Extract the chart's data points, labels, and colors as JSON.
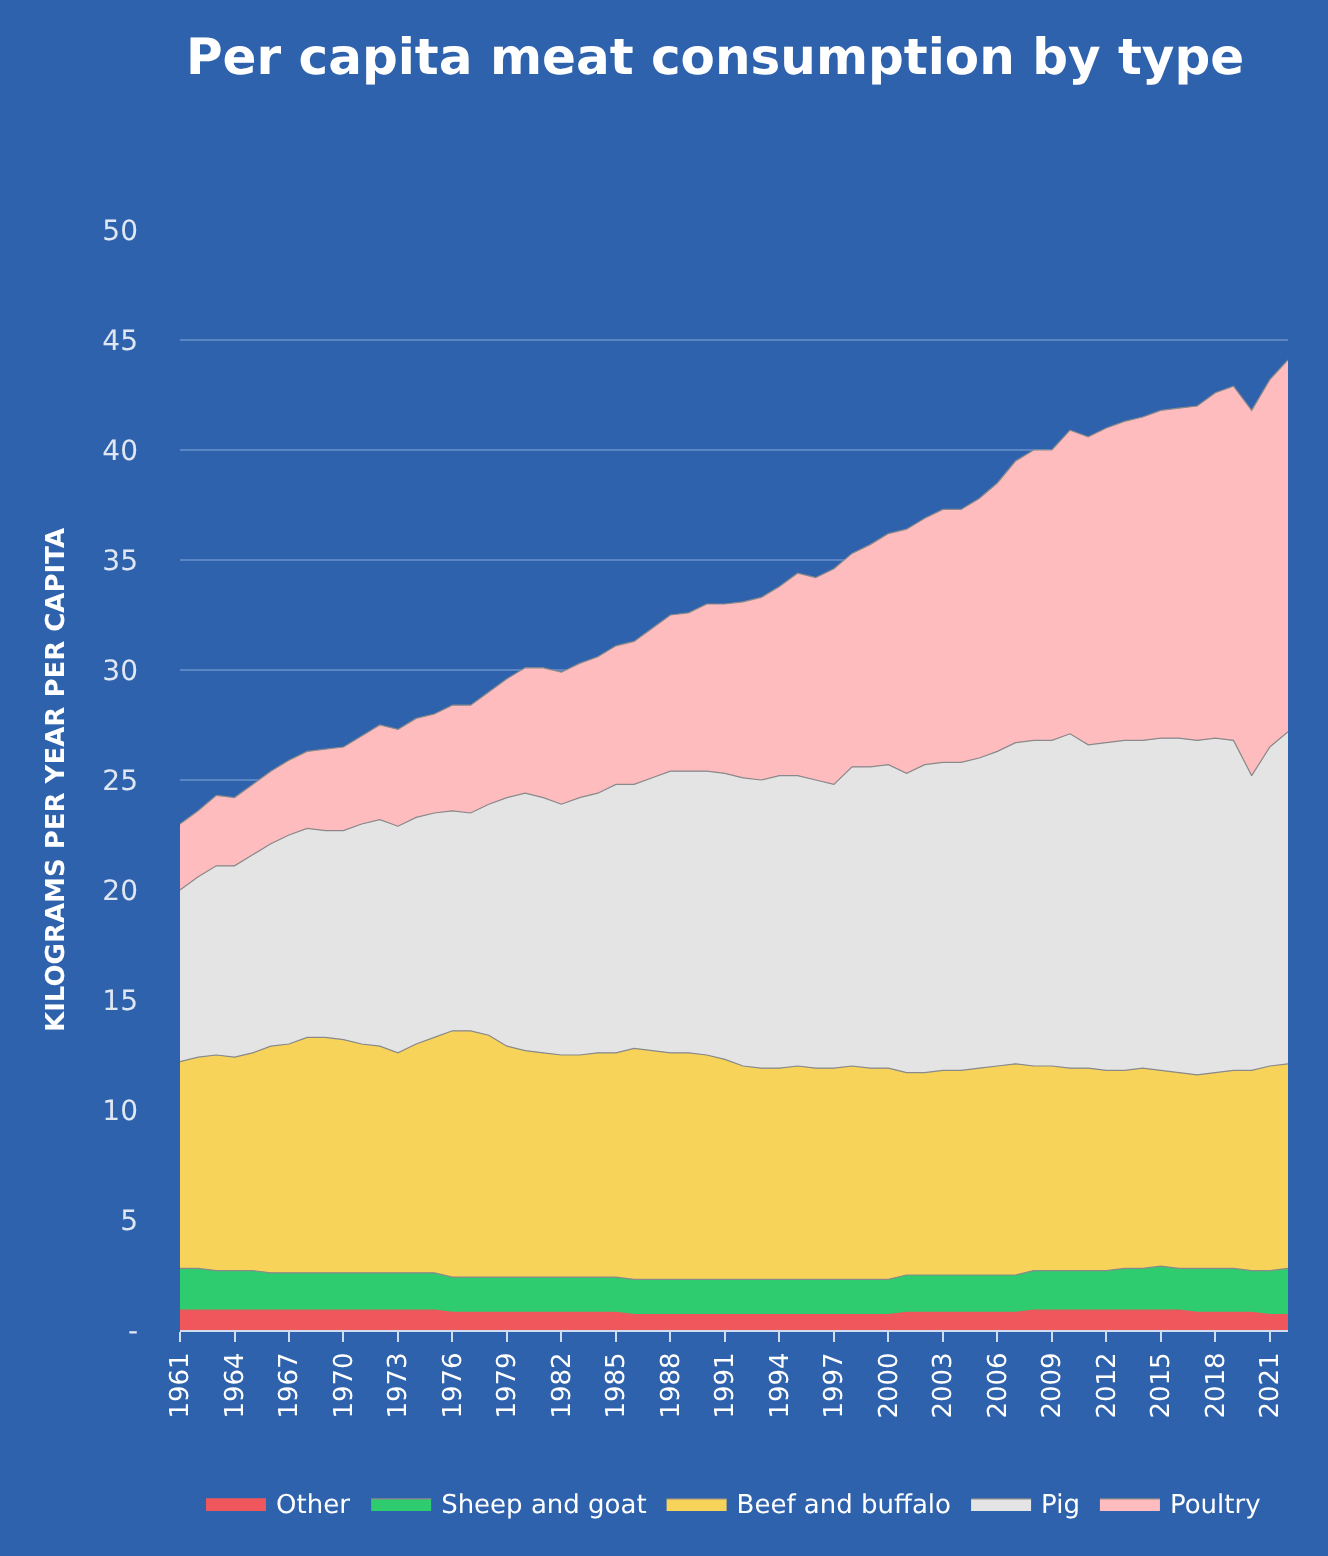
{
  "chart_data": {
    "type": "area",
    "stacked": true,
    "title": "Per capita meat consumption by type",
    "ylabel": "KILOGRAMS PER YEAR PER CAPITA",
    "x": [
      1961,
      1962,
      1963,
      1964,
      1965,
      1966,
      1967,
      1968,
      1969,
      1970,
      1971,
      1972,
      1973,
      1974,
      1975,
      1976,
      1977,
      1978,
      1979,
      1980,
      1981,
      1982,
      1983,
      1984,
      1985,
      1986,
      1987,
      1988,
      1989,
      1990,
      1991,
      1992,
      1993,
      1994,
      1995,
      1996,
      1997,
      1998,
      1999,
      2000,
      2001,
      2002,
      2003,
      2004,
      2005,
      2006,
      2007,
      2008,
      2009,
      2010,
      2011,
      2012,
      2013,
      2014,
      2015,
      2016,
      2017,
      2018,
      2019,
      2020,
      2021,
      2022
    ],
    "xlim": [
      1961,
      2022
    ],
    "xticks": [
      1961,
      1964,
      1967,
      1970,
      1973,
      1976,
      1979,
      1982,
      1985,
      1988,
      1991,
      1994,
      1997,
      2000,
      2003,
      2006,
      2009,
      2012,
      2015,
      2018,
      2021
    ],
    "ylim": [
      0,
      50
    ],
    "yticks": [
      {
        "value": 0,
        "label": "-"
      },
      5,
      10,
      15,
      20,
      25,
      30,
      35,
      40,
      45,
      50
    ],
    "grid": "y",
    "legend": "bottom",
    "series": [
      {
        "name": "Other",
        "color": "#f0575c",
        "values": [
          0.9,
          0.9,
          0.9,
          0.9,
          0.9,
          0.9,
          0.9,
          0.9,
          0.9,
          0.9,
          0.9,
          0.9,
          0.9,
          0.9,
          0.9,
          0.8,
          0.8,
          0.8,
          0.8,
          0.8,
          0.8,
          0.8,
          0.8,
          0.8,
          0.8,
          0.7,
          0.7,
          0.7,
          0.7,
          0.7,
          0.7,
          0.7,
          0.7,
          0.7,
          0.7,
          0.7,
          0.7,
          0.7,
          0.7,
          0.7,
          0.8,
          0.8,
          0.8,
          0.8,
          0.8,
          0.8,
          0.8,
          0.9,
          0.9,
          0.9,
          0.9,
          0.9,
          0.9,
          0.9,
          0.9,
          0.9,
          0.8,
          0.8,
          0.8,
          0.8,
          0.7,
          0.7
        ]
      },
      {
        "name": "Sheep and goat",
        "color": "#2ecc6e",
        "values": [
          1.9,
          1.9,
          1.8,
          1.8,
          1.8,
          1.7,
          1.7,
          1.7,
          1.7,
          1.7,
          1.7,
          1.7,
          1.7,
          1.7,
          1.7,
          1.6,
          1.6,
          1.6,
          1.6,
          1.6,
          1.6,
          1.6,
          1.6,
          1.6,
          1.6,
          1.6,
          1.6,
          1.6,
          1.6,
          1.6,
          1.6,
          1.6,
          1.6,
          1.6,
          1.6,
          1.6,
          1.6,
          1.6,
          1.6,
          1.6,
          1.7,
          1.7,
          1.7,
          1.7,
          1.7,
          1.7,
          1.7,
          1.8,
          1.8,
          1.8,
          1.8,
          1.8,
          1.9,
          1.9,
          2.0,
          1.9,
          2.0,
          2.0,
          2.0,
          1.9,
          2.0,
          2.1
        ]
      },
      {
        "name": "Beef and buffalo",
        "color": "#f7d35a",
        "values": [
          9.4,
          9.6,
          9.8,
          9.7,
          9.9,
          10.3,
          10.4,
          10.7,
          10.7,
          10.6,
          10.4,
          10.3,
          10.0,
          10.4,
          10.7,
          11.2,
          11.2,
          11.0,
          10.5,
          10.3,
          10.2,
          10.1,
          10.1,
          10.2,
          10.2,
          10.5,
          10.4,
          10.3,
          10.3,
          10.2,
          10.0,
          9.7,
          9.6,
          9.6,
          9.7,
          9.6,
          9.6,
          9.7,
          9.6,
          9.6,
          9.2,
          9.2,
          9.3,
          9.3,
          9.4,
          9.5,
          9.6,
          9.3,
          9.3,
          9.2,
          9.2,
          9.1,
          9.0,
          9.1,
          8.9,
          8.9,
          8.8,
          8.9,
          9.0,
          9.1,
          9.3,
          9.3
        ]
      },
      {
        "name": "Pig",
        "color": "#e4e4e4",
        "values": [
          7.8,
          8.2,
          8.6,
          8.7,
          9.0,
          9.2,
          9.5,
          9.5,
          9.4,
          9.5,
          10.0,
          10.3,
          10.3,
          10.3,
          10.2,
          10.0,
          9.9,
          10.5,
          11.3,
          11.7,
          11.6,
          11.4,
          11.7,
          11.8,
          12.2,
          12.0,
          12.4,
          12.8,
          12.8,
          12.9,
          13.0,
          13.1,
          13.1,
          13.3,
          13.2,
          13.1,
          12.9,
          13.6,
          13.7,
          13.8,
          13.6,
          14.0,
          14.0,
          14.0,
          14.1,
          14.3,
          14.6,
          14.8,
          14.8,
          15.2,
          14.7,
          14.9,
          15.0,
          14.9,
          15.1,
          15.2,
          15.2,
          15.2,
          15.0,
          13.4,
          14.5,
          15.1
        ]
      },
      {
        "name": "Poultry",
        "color": "#ffbcbf",
        "values": [
          3.0,
          3.0,
          3.2,
          3.1,
          3.2,
          3.3,
          3.4,
          3.5,
          3.7,
          3.8,
          4.0,
          4.3,
          4.4,
          4.5,
          4.5,
          4.8,
          4.9,
          5.1,
          5.4,
          5.7,
          5.9,
          6.0,
          6.1,
          6.2,
          6.3,
          6.5,
          6.8,
          7.1,
          7.2,
          7.6,
          7.7,
          8.0,
          8.3,
          8.6,
          9.2,
          9.2,
          9.8,
          9.7,
          10.1,
          10.5,
          11.1,
          11.2,
          11.5,
          11.5,
          11.8,
          12.2,
          12.8,
          13.2,
          13.2,
          13.8,
          14.0,
          14.3,
          14.5,
          14.7,
          14.9,
          15.0,
          15.2,
          15.7,
          16.1,
          16.6,
          16.7,
          16.9
        ]
      }
    ]
  }
}
